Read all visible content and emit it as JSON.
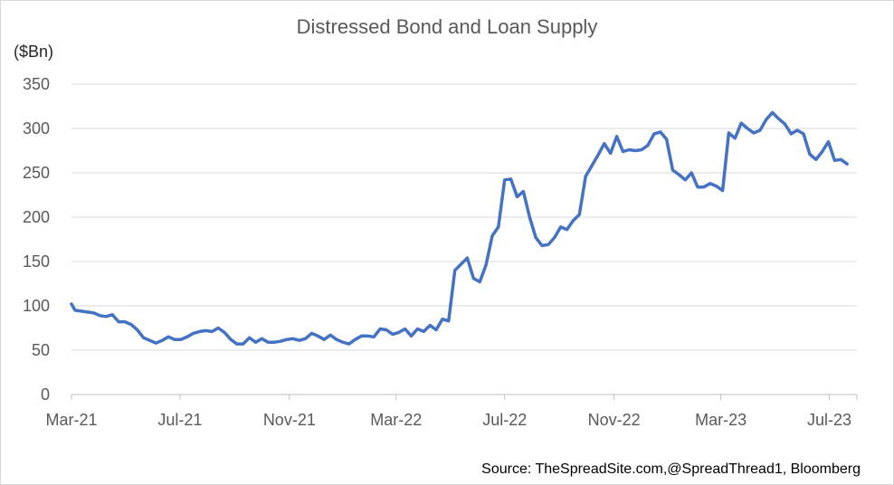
{
  "chart_data": {
    "type": "line",
    "title": "Distressed Bond and Loan Supply",
    "ylabel": "($Bn)",
    "xlabel": "",
    "ylim": [
      0,
      350
    ],
    "yticks": [
      0,
      50,
      100,
      150,
      200,
      250,
      300,
      350
    ],
    "grid": true,
    "xlim": [
      "2021-03-01",
      "2023-08-01"
    ],
    "xtick_labels": [
      {
        "date": "2021-03-01",
        "label": "Mar-21"
      },
      {
        "date": "2021-07-01",
        "label": "Jul-21"
      },
      {
        "date": "2021-11-01",
        "label": "Nov-21"
      },
      {
        "date": "2022-03-01",
        "label": "Mar-22"
      },
      {
        "date": "2022-07-01",
        "label": "Jul-22"
      },
      {
        "date": "2022-11-01",
        "label": "Nov-22"
      },
      {
        "date": "2023-03-01",
        "label": "Mar-23"
      },
      {
        "date": "2023-07-01",
        "label": "Jul-23"
      }
    ],
    "series": [
      {
        "name": "",
        "color": "#4472c4",
        "points": [
          [
            "2021-03-01",
            102
          ],
          [
            "2021-03-05",
            95
          ],
          [
            "2021-03-12",
            94
          ],
          [
            "2021-03-19",
            93
          ],
          [
            "2021-03-26",
            92
          ],
          [
            "2021-04-02",
            89
          ],
          [
            "2021-04-09",
            88
          ],
          [
            "2021-04-16",
            90
          ],
          [
            "2021-04-23",
            82
          ],
          [
            "2021-04-30",
            82
          ],
          [
            "2021-05-07",
            79
          ],
          [
            "2021-05-14",
            73
          ],
          [
            "2021-05-21",
            64
          ],
          [
            "2021-05-28",
            61
          ],
          [
            "2021-06-04",
            58
          ],
          [
            "2021-06-11",
            61
          ],
          [
            "2021-06-18",
            65
          ],
          [
            "2021-06-25",
            62
          ],
          [
            "2021-07-02",
            62
          ],
          [
            "2021-07-09",
            65
          ],
          [
            "2021-07-16",
            69
          ],
          [
            "2021-07-23",
            71
          ],
          [
            "2021-07-30",
            72
          ],
          [
            "2021-08-06",
            71
          ],
          [
            "2021-08-13",
            75
          ],
          [
            "2021-08-20",
            70
          ],
          [
            "2021-08-27",
            62
          ],
          [
            "2021-09-03",
            57
          ],
          [
            "2021-09-10",
            57
          ],
          [
            "2021-09-17",
            64
          ],
          [
            "2021-09-24",
            59
          ],
          [
            "2021-10-01",
            63
          ],
          [
            "2021-10-08",
            59
          ],
          [
            "2021-10-15",
            59
          ],
          [
            "2021-10-22",
            60
          ],
          [
            "2021-10-29",
            62
          ],
          [
            "2021-11-05",
            63
          ],
          [
            "2021-11-12",
            61
          ],
          [
            "2021-11-19",
            63
          ],
          [
            "2021-11-26",
            69
          ],
          [
            "2021-12-03",
            66
          ],
          [
            "2021-12-10",
            62
          ],
          [
            "2021-12-17",
            67
          ],
          [
            "2021-12-24",
            62
          ],
          [
            "2021-12-31",
            59
          ],
          [
            "2022-01-07",
            57
          ],
          [
            "2022-01-14",
            62
          ],
          [
            "2022-01-21",
            66
          ],
          [
            "2022-01-28",
            66
          ],
          [
            "2022-02-04",
            65
          ],
          [
            "2022-02-11",
            74
          ],
          [
            "2022-02-18",
            73
          ],
          [
            "2022-02-25",
            68
          ],
          [
            "2022-03-04",
            70
          ],
          [
            "2022-03-11",
            74
          ],
          [
            "2022-03-18",
            66
          ],
          [
            "2022-03-25",
            74
          ],
          [
            "2022-04-01",
            71
          ],
          [
            "2022-04-08",
            78
          ],
          [
            "2022-04-15",
            73
          ],
          [
            "2022-04-22",
            85
          ],
          [
            "2022-04-29",
            83
          ],
          [
            "2022-05-06",
            140
          ],
          [
            "2022-05-13",
            147
          ],
          [
            "2022-05-20",
            154
          ],
          [
            "2022-05-27",
            131
          ],
          [
            "2022-06-03",
            127
          ],
          [
            "2022-06-10",
            146
          ],
          [
            "2022-06-17",
            179
          ],
          [
            "2022-06-24",
            189
          ],
          [
            "2022-07-01",
            242
          ],
          [
            "2022-07-08",
            243
          ],
          [
            "2022-07-15",
            223
          ],
          [
            "2022-07-22",
            229
          ],
          [
            "2022-07-29",
            200
          ],
          [
            "2022-08-05",
            177
          ],
          [
            "2022-08-12",
            168
          ],
          [
            "2022-08-19",
            169
          ],
          [
            "2022-08-26",
            177
          ],
          [
            "2022-09-02",
            189
          ],
          [
            "2022-09-09",
            186
          ],
          [
            "2022-09-16",
            196
          ],
          [
            "2022-09-23",
            203
          ],
          [
            "2022-09-30",
            246
          ],
          [
            "2022-10-07",
            258
          ],
          [
            "2022-10-14",
            270
          ],
          [
            "2022-10-21",
            283
          ],
          [
            "2022-10-28",
            272
          ],
          [
            "2022-11-04",
            291
          ],
          [
            "2022-11-11",
            274
          ],
          [
            "2022-11-18",
            276
          ],
          [
            "2022-11-25",
            275
          ],
          [
            "2022-12-02",
            276
          ],
          [
            "2022-12-09",
            281
          ],
          [
            "2022-12-16",
            294
          ],
          [
            "2022-12-23",
            296
          ],
          [
            "2022-12-30",
            288
          ],
          [
            "2023-01-06",
            253
          ],
          [
            "2023-01-13",
            248
          ],
          [
            "2023-01-20",
            242
          ],
          [
            "2023-01-27",
            250
          ],
          [
            "2023-02-03",
            234
          ],
          [
            "2023-02-10",
            234
          ],
          [
            "2023-02-17",
            238
          ],
          [
            "2023-02-24",
            235
          ],
          [
            "2023-03-03",
            230
          ],
          [
            "2023-03-10",
            295
          ],
          [
            "2023-03-17",
            289
          ],
          [
            "2023-03-24",
            306
          ],
          [
            "2023-03-31",
            300
          ],
          [
            "2023-04-07",
            295
          ],
          [
            "2023-04-14",
            298
          ],
          [
            "2023-04-21",
            310
          ],
          [
            "2023-04-28",
            318
          ],
          [
            "2023-05-05",
            311
          ],
          [
            "2023-05-12",
            305
          ],
          [
            "2023-05-19",
            294
          ],
          [
            "2023-05-26",
            298
          ],
          [
            "2023-06-02",
            294
          ],
          [
            "2023-06-09",
            271
          ],
          [
            "2023-06-16",
            265
          ],
          [
            "2023-06-23",
            274
          ],
          [
            "2023-06-30",
            285
          ],
          [
            "2023-07-07",
            264
          ],
          [
            "2023-07-14",
            265
          ],
          [
            "2023-07-21",
            260
          ]
        ]
      }
    ],
    "source": "Source: TheSpreadSite.com,@SpreadThread1, Bloomberg"
  }
}
